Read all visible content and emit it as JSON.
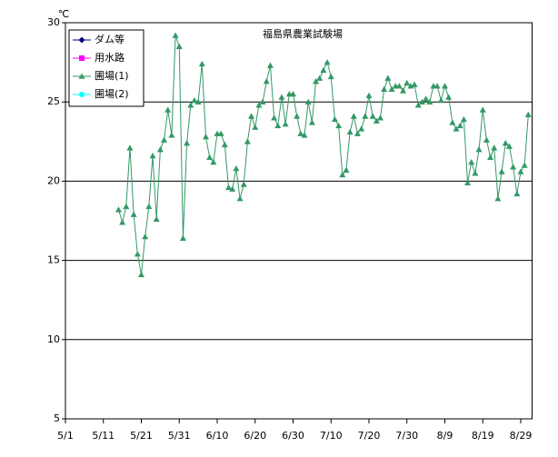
{
  "chart_data": {
    "type": "line",
    "title": "福島県農業試験場",
    "y_label": "℃",
    "x": [
      "5/15",
      "5/16",
      "5/17",
      "5/18",
      "5/19",
      "5/20",
      "5/21",
      "5/22",
      "5/23",
      "5/24",
      "5/25",
      "5/26",
      "5/27",
      "5/28",
      "5/29",
      "5/30",
      "5/31",
      "6/1",
      "6/2",
      "6/3",
      "6/4",
      "6/5",
      "6/6",
      "6/7",
      "6/8",
      "6/9",
      "6/10",
      "6/11",
      "6/12",
      "6/13",
      "6/14",
      "6/15",
      "6/16",
      "6/17",
      "6/18",
      "6/19",
      "6/20",
      "6/21",
      "6/22",
      "6/23",
      "6/24",
      "6/25",
      "6/26",
      "6/27",
      "6/28",
      "6/29",
      "6/30",
      "7/1",
      "7/2",
      "7/3",
      "7/4",
      "7/5",
      "7/6",
      "7/7",
      "7/8",
      "7/9",
      "7/10",
      "7/11",
      "7/12",
      "7/13",
      "7/14",
      "7/15",
      "7/16",
      "7/17",
      "7/18",
      "7/19",
      "7/20",
      "7/21",
      "7/22",
      "7/23",
      "7/24",
      "7/25",
      "7/26",
      "7/27",
      "7/28",
      "7/29",
      "7/30",
      "7/31",
      "8/1",
      "8/2",
      "8/3",
      "8/4",
      "8/5",
      "8/6",
      "8/7",
      "8/8",
      "8/9",
      "8/10",
      "8/11",
      "8/12",
      "8/13",
      "8/14",
      "8/15",
      "8/16",
      "8/17",
      "8/18",
      "8/19",
      "8/20",
      "8/21",
      "8/22",
      "8/23",
      "8/24",
      "8/25",
      "8/26",
      "8/27",
      "8/28",
      "8/29",
      "8/30",
      "8/31"
    ],
    "series": [
      {
        "name": "ダム等",
        "color": "#000080",
        "marker": "diamond",
        "values": [
          null,
          null,
          null,
          null,
          null,
          null,
          null,
          null,
          null,
          null,
          null,
          null,
          null,
          null,
          null,
          null,
          null,
          null,
          null,
          null,
          null,
          null,
          null,
          null,
          null,
          null,
          null,
          null,
          null,
          null,
          null,
          null,
          null,
          null,
          null,
          null,
          null,
          null,
          null,
          null,
          null,
          null,
          null,
          null,
          null,
          null,
          null,
          null,
          null,
          null,
          null,
          null,
          null,
          null,
          null,
          null,
          null,
          null,
          null,
          null,
          null,
          null,
          null,
          null,
          null,
          null,
          null,
          null,
          null,
          null,
          null,
          null,
          null,
          null,
          null,
          null,
          null,
          null,
          null,
          null,
          null,
          null,
          null,
          null,
          null,
          null,
          null,
          null,
          null,
          null,
          null,
          null,
          null,
          null,
          null,
          null,
          null,
          null,
          null,
          null,
          null,
          null,
          null,
          null,
          null,
          null,
          null,
          null,
          null
        ]
      },
      {
        "name": "用水路",
        "color": "#ff00ff",
        "marker": "square",
        "values": [
          null,
          null,
          null,
          null,
          null,
          null,
          null,
          null,
          null,
          null,
          null,
          null,
          null,
          null,
          null,
          null,
          null,
          null,
          null,
          null,
          null,
          null,
          null,
          null,
          null,
          null,
          null,
          null,
          null,
          null,
          null,
          null,
          null,
          null,
          null,
          null,
          null,
          null,
          null,
          null,
          null,
          null,
          null,
          null,
          null,
          null,
          null,
          null,
          null,
          null,
          null,
          null,
          null,
          null,
          null,
          null,
          null,
          null,
          null,
          null,
          null,
          null,
          null,
          null,
          null,
          null,
          null,
          null,
          null,
          null,
          null,
          null,
          null,
          null,
          null,
          null,
          null,
          null,
          null,
          null,
          null,
          null,
          null,
          null,
          null,
          null,
          null,
          null,
          null,
          null,
          null,
          null,
          null,
          null,
          null,
          null,
          null,
          null,
          null,
          null,
          null,
          null,
          null,
          null,
          null,
          null,
          null,
          null,
          null
        ]
      },
      {
        "name": "圃場(1)",
        "color": "#339966",
        "marker": "triangle",
        "values": [
          18.2,
          17.4,
          18.4,
          22.1,
          17.9,
          15.4,
          14.1,
          16.5,
          18.4,
          21.6,
          17.6,
          22.0,
          22.6,
          24.5,
          22.9,
          29.2,
          28.5,
          16.4,
          22.4,
          24.8,
          25.1,
          25.0,
          27.4,
          22.8,
          21.5,
          21.2,
          23.0,
          23.0,
          22.3,
          19.6,
          19.5,
          20.8,
          18.9,
          19.8,
          22.5,
          24.1,
          23.4,
          24.8,
          25.0,
          26.3,
          27.3,
          24.0,
          23.5,
          25.3,
          23.6,
          25.5,
          25.5,
          24.1,
          23.0,
          22.9,
          25.0,
          23.7,
          26.3,
          26.5,
          27.0,
          27.5,
          26.6,
          23.9,
          23.5,
          20.4,
          20.7,
          23.1,
          24.1,
          23.0,
          23.3,
          24.1,
          25.4,
          24.1,
          23.8,
          24.0,
          25.8,
          26.5,
          25.8,
          26.0,
          26.0,
          25.7,
          26.2,
          26.0,
          26.1,
          24.8,
          25.0,
          25.2,
          25.0,
          26.0,
          26.0,
          25.1,
          26.0,
          25.3,
          23.7,
          23.3,
          23.5,
          23.9,
          19.9,
          21.2,
          20.5,
          22.0,
          24.5,
          22.6,
          21.5,
          22.1,
          18.9,
          20.6,
          22.4,
          22.2,
          20.9,
          19.2,
          20.6,
          21.0,
          24.2
        ]
      },
      {
        "name": "圃場(2)",
        "color": "#00ffff",
        "marker": "circle",
        "values": [
          null,
          null,
          null,
          null,
          null,
          null,
          null,
          null,
          null,
          null,
          null,
          null,
          null,
          null,
          null,
          null,
          null,
          null,
          null,
          null,
          null,
          null,
          null,
          null,
          null,
          null,
          null,
          null,
          null,
          null,
          null,
          null,
          null,
          null,
          null,
          null,
          null,
          null,
          null,
          null,
          null,
          null,
          null,
          null,
          null,
          null,
          null,
          null,
          null,
          null,
          null,
          null,
          null,
          null,
          null,
          null,
          null,
          null,
          null,
          null,
          null,
          null,
          null,
          null,
          null,
          null,
          null,
          null,
          null,
          null,
          null,
          null,
          null,
          null,
          null,
          null,
          null,
          null,
          null,
          null,
          null,
          null,
          null,
          null,
          null,
          null,
          null,
          null,
          null,
          null,
          null,
          null,
          null,
          null,
          null,
          null,
          null,
          null,
          null,
          null,
          null,
          null,
          null,
          null,
          null,
          null,
          null,
          null,
          null
        ]
      }
    ],
    "xlim": [
      "5/1",
      "9/1"
    ],
    "xticks": [
      "5/1",
      "5/11",
      "5/21",
      "5/31",
      "6/10",
      "6/20",
      "6/30",
      "7/10",
      "7/20",
      "7/30",
      "8/9",
      "8/19",
      "8/29"
    ],
    "ylim": [
      5,
      30
    ],
    "yticks": [
      5,
      10,
      15,
      20,
      25,
      30
    ],
    "grid": true,
    "legend": "upper left"
  }
}
